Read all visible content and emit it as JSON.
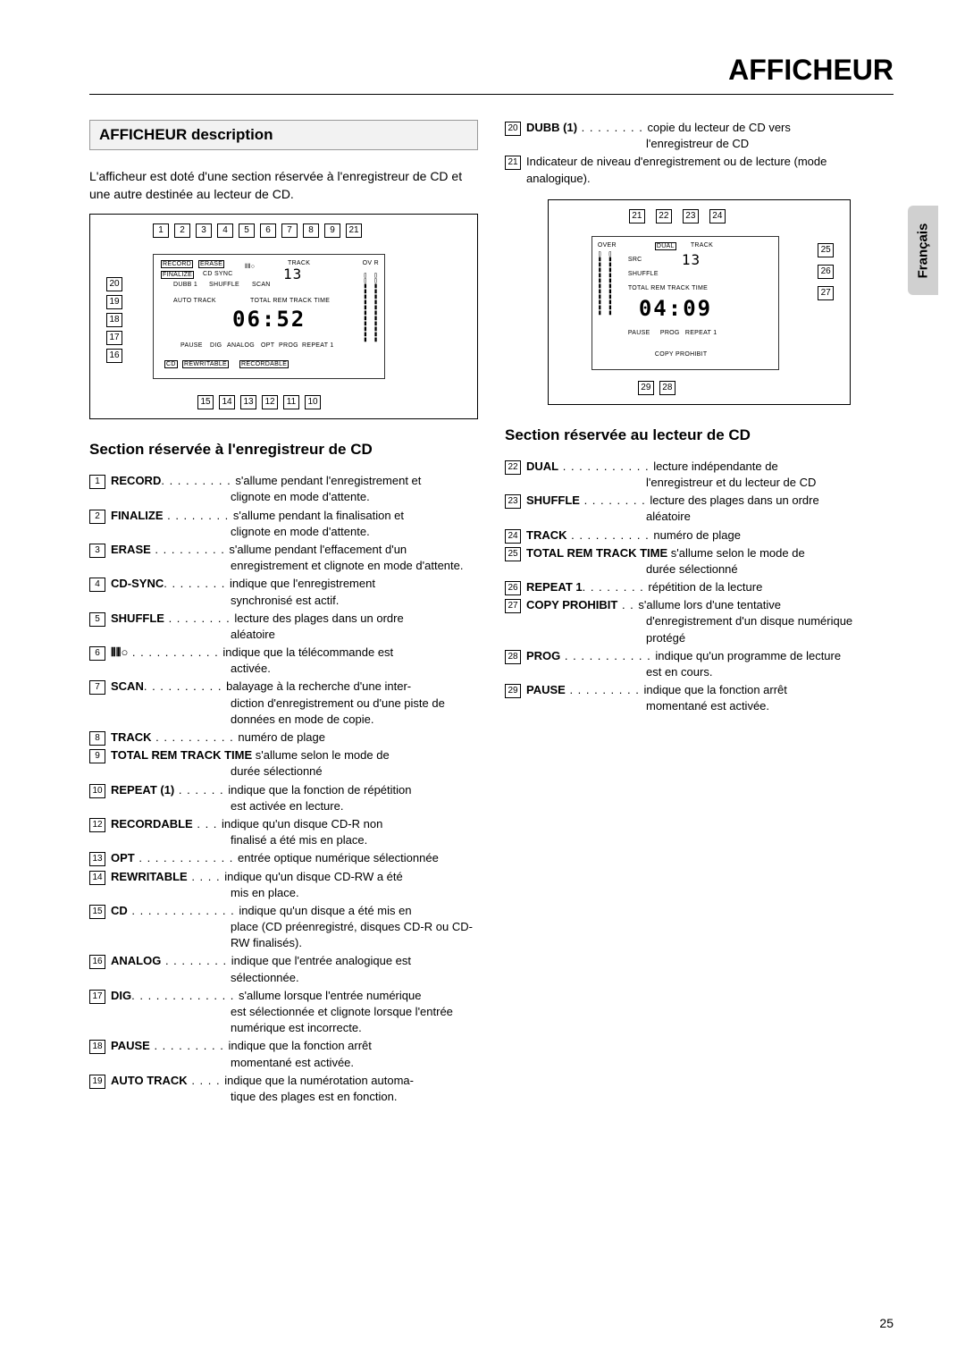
{
  "header": "AFFICHEUR",
  "side_tab": "Français",
  "page_number": "25",
  "left": {
    "title_box": "AFFICHEUR description",
    "intro": "L'afficheur est doté d'une section réservée à l'enregistreur de CD et une autre destinée au lecteur de CD.",
    "diagram": {
      "top_callouts": [
        "1",
        "2",
        "3",
        "4",
        "5",
        "6",
        "7",
        "8",
        "9",
        "21"
      ],
      "left_callouts": [
        "20",
        "19",
        "18",
        "17",
        "16"
      ],
      "bottom_callouts": [
        "15",
        "14",
        "13",
        "12",
        "11",
        "10"
      ],
      "lcd_labels": {
        "record": "RECORD",
        "erase": "ERASE",
        "finalize": "FINALIZE",
        "cdsync": "CD SYNC",
        "dubb1": "DUBB 1",
        "shuffle": "SHUFFLE",
        "scan": "SCAN",
        "track": "TRACK",
        "auto_track": "AUTO TRACK",
        "total_rem_track_time": "TOTAL  REM  TRACK  TIME",
        "pause": "PAUSE",
        "dig": "DIG",
        "analog": "ANALOG",
        "opt": "OPT",
        "prog": "PROG",
        "repeat1": "REPEAT 1",
        "cd": "CD",
        "rewritable": "REWRITABLE",
        "recordable": "RECORDABLE",
        "ovr": "OV R",
        "remote": "⦀⦀○"
      },
      "seg_track": "13",
      "seg_time": "06:52"
    },
    "subsection": "Section réservée à l'enregistreur de CD",
    "items": [
      {
        "n": "1",
        "label": "RECORD",
        "dots": ". . . . . . . . .",
        "desc": "s'allume pendant l'enregistrement et",
        "cont": "clignote en mode d'attente."
      },
      {
        "n": "2",
        "label": "FINALIZE",
        "dots": " . . . . . . . .",
        "desc": "s'allume pendant la finalisation et",
        "cont": "clignote en mode d'attente."
      },
      {
        "n": "3",
        "label": "ERASE",
        "dots": " . . . . . . . . .",
        "desc": "s'allume pendant l'effacement d'un",
        "cont": "enregistrement et clignote en mode d'attente."
      },
      {
        "n": "4",
        "label": "CD-SYNC",
        "dots": ". . . . . . . .",
        "desc": "indique que l'enregistrement",
        "cont": "synchronisé est actif."
      },
      {
        "n": "5",
        "label": "SHUFFLE",
        "dots": " . . . . . . . .",
        "desc": "lecture des plages dans un ordre",
        "cont": "aléatoire"
      },
      {
        "n": "6",
        "label": "⦀⦀○",
        "dots": "   . . . . . . . . . . .",
        "desc": "indique que la télécommande est",
        "cont": "activée."
      },
      {
        "n": "7",
        "label": "SCAN",
        "dots": ". . . . . . . . . .",
        "desc": "balayage à la recherche d'une inter-",
        "cont": "diction d'enregistrement ou d'une piste de données en mode de copie."
      },
      {
        "n": "8",
        "label": "TRACK",
        "dots": " . . . . . . . . . .",
        "desc": "numéro de plage"
      },
      {
        "n": "9",
        "label": "TOTAL REM TRACK TIME",
        "dots": "",
        "desc": " s'allume selon le mode de",
        "cont": "durée sélectionné"
      },
      {
        "n": "10",
        "label": "REPEAT (1)",
        "dots": "  . . . . . .",
        "desc": "indique que la fonction de répétition",
        "cont": "est activée en lecture."
      },
      {
        "n": "12",
        "label": "RECORDABLE",
        "dots": "   . . .",
        "desc": "indique qu'un disque CD-R non",
        "cont": "finalisé a été mis en place."
      },
      {
        "n": "13",
        "label": "OPT",
        "dots": " . . . . . . . . . . . .",
        "desc": "entrée optique numérique sélectionnée"
      },
      {
        "n": "14",
        "label": "REWRITABLE",
        "dots": " . . . .",
        "desc": "indique qu'un disque CD-RW a été",
        "cont": "mis en place."
      },
      {
        "n": "15",
        "label": "CD",
        "dots": "  . . . . . . . . . . . . .",
        "desc": "indique qu'un disque a été mis en",
        "cont": "place (CD préenregistré, disques CD-R ou CD-RW finalisés)."
      },
      {
        "n": "16",
        "label": "ANALOG",
        "dots": " . . . . . . . .",
        "desc": "indique que l'entrée analogique est",
        "cont": "sélectionnée."
      },
      {
        "n": "17",
        "label": "DIG",
        "dots": ". . . . . . . . . . . . .",
        "desc": "s'allume lorsque l'entrée numérique",
        "cont": "est sélectionnée et clignote lorsque l'entrée numérique est incorrecte."
      },
      {
        "n": "18",
        "label": "PAUSE",
        "dots": "   . . . . . . . . .",
        "desc": "indique que la fonction arrêt",
        "cont": "momentané est activée."
      },
      {
        "n": "19",
        "label": "AUTO TRACK",
        "dots": "  . . . .",
        "desc": "indique que la numérotation automa-",
        "cont": "tique des plages est en fonction."
      }
    ]
  },
  "right": {
    "items_top": [
      {
        "n": "20",
        "label": "DUBB (1)",
        "dots": " . . . . . . . .",
        "desc": "copie du lecteur de CD vers",
        "cont": "l'enregistreur de CD"
      },
      {
        "n": "21",
        "label": "",
        "dots": "",
        "desc": "Indicateur de niveau d'enregistrement ou de lecture (mode analogique)."
      }
    ],
    "diagram": {
      "top_callouts": [
        "21",
        "22",
        "23",
        "24"
      ],
      "right_callouts": [
        "25",
        "26",
        "27"
      ],
      "bottom_callouts": [
        "29",
        "28"
      ],
      "lcd_labels": {
        "over": "OVER",
        "dual": "DUAL",
        "track": "TRACK",
        "src": "SRC",
        "shuffle": "SHUFFLE",
        "total_rem_track_time": "TOTAL REM TRACK TIME",
        "pause": "PAUSE",
        "prog": "PROG",
        "repeat1": "REPEAT 1",
        "copy_prohibit": "COPY PROHIBIT"
      },
      "seg_track": "13",
      "seg_time": "04:09"
    },
    "subsection": "Section réservée au lecteur de CD",
    "items": [
      {
        "n": "22",
        "label": "DUAL",
        "dots": " . . . . . . . . . . .",
        "desc": "lecture indépendante de",
        "cont": "l'enregistreur et du lecteur de CD"
      },
      {
        "n": "23",
        "label": "SHUFFLE",
        "dots": " . . . . . . . .",
        "desc": "lecture des plages dans un ordre",
        "cont": "aléatoire"
      },
      {
        "n": "24",
        "label": "TRACK",
        "dots": " . . . . . . . . . .",
        "desc": "numéro de plage"
      },
      {
        "n": "25",
        "label": "TOTAL REM TRACK TIME",
        "dots": "",
        "desc": " s'allume selon le mode de",
        "cont": "durée sélectionné"
      },
      {
        "n": "26",
        "label": "REPEAT 1",
        "dots": ". . . . . . . .",
        "desc": "répétition de la lecture"
      },
      {
        "n": "27",
        "label": "COPY PROHIBIT",
        "dots": " . .",
        "desc": "s'allume lors d'une tentative",
        "cont": "d'enregistrement d'un disque numérique protégé"
      },
      {
        "n": "28",
        "label": "PROG",
        "dots": " . . . . . . . . . . .",
        "desc": "indique qu'un programme de lecture",
        "cont": "est en cours."
      },
      {
        "n": "29",
        "label": "PAUSE",
        "dots": "   . . . . . . . . .",
        "desc": "indique que la fonction arrêt",
        "cont": "momentané est activée."
      }
    ]
  }
}
